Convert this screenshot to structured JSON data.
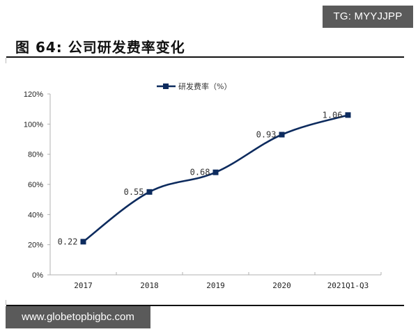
{
  "header": {
    "badge": "TG: MYYJJPP",
    "figure_title": "图 64:  公司研发费率变化"
  },
  "footer": {
    "site": "www.globetopbigbc.com"
  },
  "colors": {
    "series": "#0d2b5e",
    "axis": "#b0b0b0",
    "badge_bg": "#5a5a5a"
  },
  "chart_data": {
    "type": "line",
    "title": "公司研发费率变化",
    "xlabel": "",
    "ylabel": "",
    "categories": [
      "2017",
      "2018",
      "2019",
      "2020",
      "2021Q1-Q3"
    ],
    "series": [
      {
        "name": "研发费率（%）",
        "values": [
          0.22,
          0.55,
          0.68,
          0.93,
          1.06
        ]
      }
    ],
    "data_labels": [
      "0.22",
      "0.55",
      "0.68",
      "0.93",
      "1.06"
    ],
    "yticks": [
      "0%",
      "20%",
      "40%",
      "60%",
      "80%",
      "100%",
      "120%"
    ],
    "ylim": [
      0,
      1.2
    ],
    "grid": false,
    "legend_position": "top",
    "smooth": true,
    "marker": "square"
  }
}
